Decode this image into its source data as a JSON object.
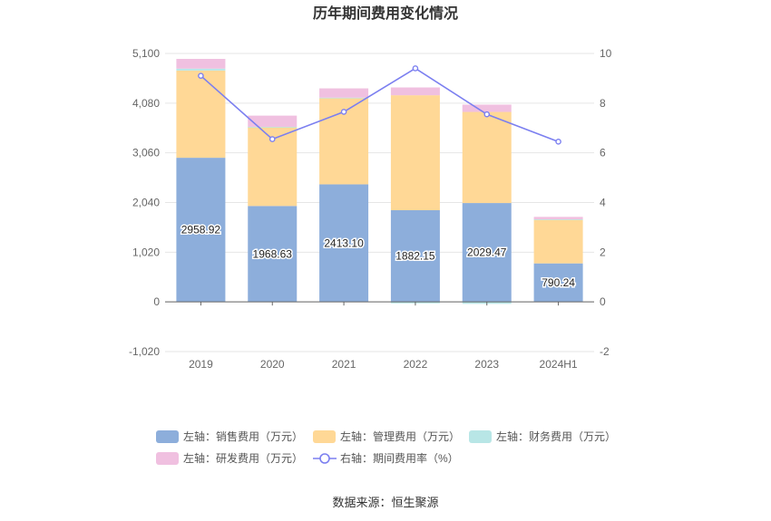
{
  "chart_data": {
    "type": "bar",
    "title": "历年期间费用变化情况",
    "categories": [
      "2019",
      "2020",
      "2021",
      "2022",
      "2023",
      "2024H1"
    ],
    "series": [
      {
        "name": "左轴：销售费用（万元）",
        "axis": "left",
        "type": "bar",
        "color": "#8daedb",
        "values": [
          2958.92,
          1968.63,
          2413.1,
          1882.15,
          2029.47,
          790.24
        ],
        "labels": [
          "2958.92",
          "1968.63",
          "2413.10",
          "1882.15",
          "2029.47",
          "790.24"
        ]
      },
      {
        "name": "左轴：管理费用（万元）",
        "axis": "left",
        "type": "bar",
        "color": "#ffd896",
        "values": [
          1790,
          1620,
          1770,
          2360,
          1870,
          900
        ]
      },
      {
        "name": "左轴：财务费用（万元）",
        "axis": "left",
        "type": "bar",
        "color": "#b8e6e6",
        "values": [
          40,
          5,
          10,
          -30,
          -40,
          5
        ]
      },
      {
        "name": "左轴：研发费用（万元）",
        "axis": "left",
        "type": "bar",
        "color": "#f0c0e0",
        "values": [
          200,
          230,
          190,
          160,
          150,
          50
        ]
      },
      {
        "name": "右轴：期间费用率（%）",
        "axis": "right",
        "type": "line",
        "color": "#7b7ff0",
        "values": [
          9.1,
          6.55,
          7.65,
          9.4,
          7.55,
          6.45
        ]
      }
    ],
    "left_axis": {
      "min": -1020,
      "max": 5100,
      "ticks": [
        -1020,
        0,
        1020,
        2040,
        3060,
        4080,
        5100
      ],
      "tick_labels": [
        "-1,020",
        "0",
        "1,020",
        "2,040",
        "3,060",
        "4,080",
        "5,100"
      ]
    },
    "right_axis": {
      "min": -2,
      "max": 10,
      "ticks": [
        -2,
        0,
        2,
        4,
        6,
        8,
        10
      ],
      "tick_labels": [
        "-2",
        "0",
        "2",
        "4",
        "6",
        "8",
        "10"
      ]
    },
    "grid": true,
    "legend_position": "bottom"
  },
  "source_text": "数据来源：恒生聚源"
}
